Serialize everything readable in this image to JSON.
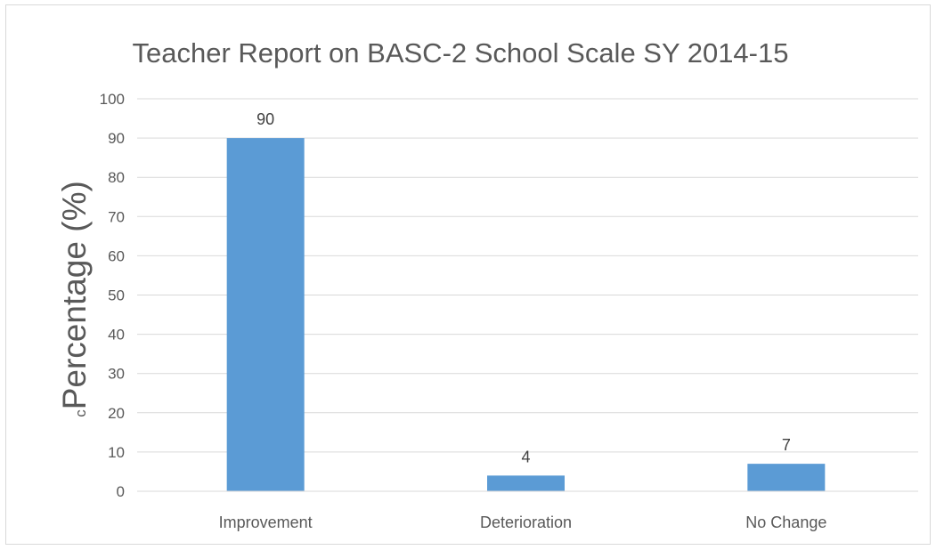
{
  "chart_data": {
    "type": "bar",
    "title": "Teacher Report on BASC-2 School Scale SY 2014-15",
    "xlabel": "",
    "ylabel": "cPercentage (%)",
    "ylabel_prefix": "c",
    "ylabel_main": "Percentage (%)",
    "categories": [
      "Improvement",
      "Deterioration",
      "No Change"
    ],
    "values": [
      90,
      4,
      7
    ],
    "data_labels": [
      "90",
      "4",
      "7"
    ],
    "ylim": [
      0,
      100
    ],
    "yticks": [
      0,
      10,
      20,
      30,
      40,
      50,
      60,
      70,
      80,
      90,
      100
    ],
    "ytick_labels": [
      "0",
      "10",
      "20",
      "30",
      "40",
      "50",
      "60",
      "70",
      "80",
      "90",
      "100"
    ],
    "grid": true,
    "legend": "none",
    "colors": {
      "bar": "#5b9bd5",
      "grid": "#d9d9d9",
      "axis": "#d9d9d9",
      "text": "#595959",
      "frame": "#d9d9d9"
    }
  }
}
